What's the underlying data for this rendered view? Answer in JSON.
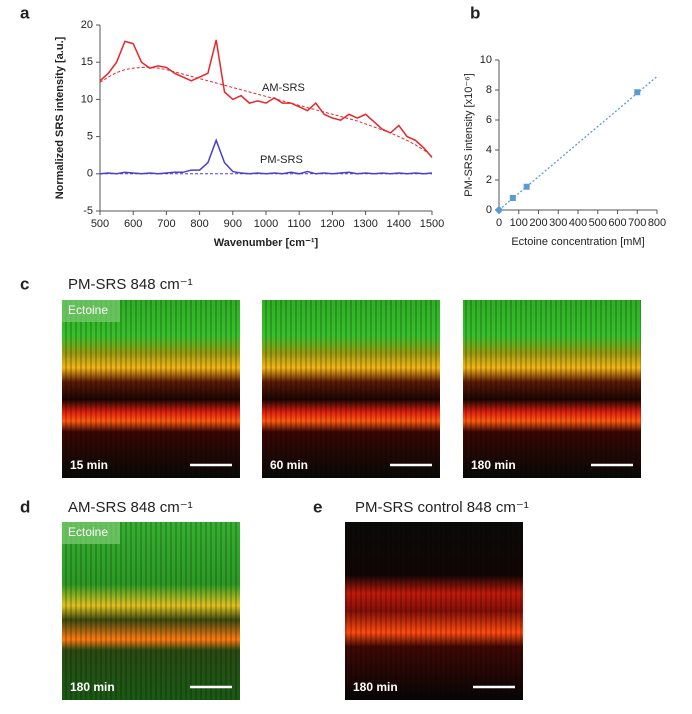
{
  "chart_data": [
    {
      "type": "line",
      "panel": "a",
      "x_label": "Wavenumber [cm⁻¹]",
      "y_label": "Normalized SRS intensity [a.u.]",
      "x": [
        500,
        525,
        550,
        575,
        600,
        625,
        650,
        675,
        700,
        725,
        750,
        775,
        800,
        825,
        850,
        875,
        900,
        925,
        950,
        975,
        1000,
        1025,
        1050,
        1075,
        1100,
        1125,
        1150,
        1175,
        1200,
        1225,
        1250,
        1275,
        1300,
        1325,
        1350,
        1375,
        1400,
        1425,
        1450,
        1475,
        1500
      ],
      "series": [
        {
          "name": "AM-SRS",
          "color": "#e8262a",
          "style": "solid",
          "values": [
            12.5,
            13.5,
            15,
            17.8,
            17.5,
            15,
            14.2,
            14.5,
            14.3,
            13.5,
            13,
            12.5,
            13,
            13.5,
            18,
            11,
            10,
            10.5,
            9.5,
            9.8,
            9.5,
            10.2,
            9.5,
            9.5,
            9,
            8.5,
            9.5,
            8,
            7.5,
            7.2,
            8,
            7.5,
            8,
            7,
            6,
            5.5,
            6.5,
            5,
            4.5,
            3.5,
            2.2
          ]
        },
        {
          "color": "#e8262a",
          "style": "dashed",
          "values": [
            12.3,
            13,
            13.6,
            14,
            14.2,
            14.3,
            14.3,
            14.2,
            14,
            13.7,
            13.4,
            13.1,
            12.8,
            12.5,
            12.2,
            11.9,
            11.6,
            11.3,
            11,
            10.7,
            10.4,
            10.1,
            9.8,
            9.5,
            9.2,
            8.9,
            8.6,
            8.3,
            8,
            7.7,
            7.4,
            7.1,
            6.7,
            6.3,
            5.9,
            5.5,
            5,
            4.5,
            3.9,
            3.2,
            2.4
          ]
        },
        {
          "name": "PM-SRS",
          "color": "#4b3fd0",
          "style": "solid",
          "values": [
            0,
            0.1,
            0,
            0.2,
            0.1,
            0,
            0.1,
            0,
            0.1,
            0.2,
            0.2,
            0.5,
            0.5,
            1.5,
            4.5,
            1.5,
            0.3,
            0.1,
            0,
            0.1,
            0,
            0.1,
            0,
            0.2,
            0,
            0.3,
            0,
            0.1,
            0,
            0.1,
            0.2,
            0,
            0.1,
            0,
            0.1,
            0,
            0.1,
            0,
            0.1,
            0,
            0.1
          ]
        },
        {
          "color": "#4b3fd0",
          "style": "dashed",
          "values": [
            0,
            0,
            0,
            0,
            0,
            0,
            0,
            0,
            0,
            0,
            0,
            0,
            0,
            0,
            0,
            0,
            0,
            0,
            0,
            0,
            0,
            0,
            0,
            0,
            0,
            0,
            0,
            0,
            0,
            0,
            0,
            0,
            0,
            0,
            0,
            0,
            0,
            0,
            0,
            0,
            0
          ]
        }
      ],
      "xlim": [
        500,
        1500
      ],
      "xticks": [
        500,
        600,
        700,
        800,
        900,
        1000,
        1100,
        1200,
        1300,
        1400,
        1500
      ],
      "ylim": [
        -5,
        20
      ],
      "yticks": [
        -5,
        0,
        5,
        10,
        15,
        20
      ]
    },
    {
      "type": "scatter",
      "panel": "b",
      "x_label": "Ectoine concentration [mM]",
      "y_label": "PM-SRS intensity  [x10⁻⁶]",
      "x": [
        0,
        70,
        140,
        700
      ],
      "series": [
        {
          "color": "#5b9bd5",
          "values": [
            0,
            0.8,
            1.55,
            7.85
          ]
        }
      ],
      "trend": {
        "x": [
          0,
          800
        ],
        "values": [
          0,
          8.9
        ],
        "color": "#5b9bd5"
      },
      "xlim": [
        0,
        800
      ],
      "xticks": [
        0,
        100,
        200,
        300,
        400,
        500,
        600,
        700,
        800
      ],
      "ylim": [
        0,
        10
      ],
      "yticks": [
        0,
        2,
        4,
        6,
        8,
        10
      ]
    }
  ],
  "image_panels": [
    {
      "panel": "c",
      "title": "PM-SRS 848 cm⁻¹",
      "label": "Ectoine",
      "times": [
        "15 min",
        "60 min",
        "180 min"
      ]
    },
    {
      "panel": "d",
      "title": "AM-SRS 848 cm⁻¹",
      "label": "Ectoine",
      "times": [
        "180 min"
      ]
    },
    {
      "panel": "e",
      "title": "PM-SRS control 848 cm⁻¹",
      "times": [
        "180 min"
      ]
    }
  ]
}
